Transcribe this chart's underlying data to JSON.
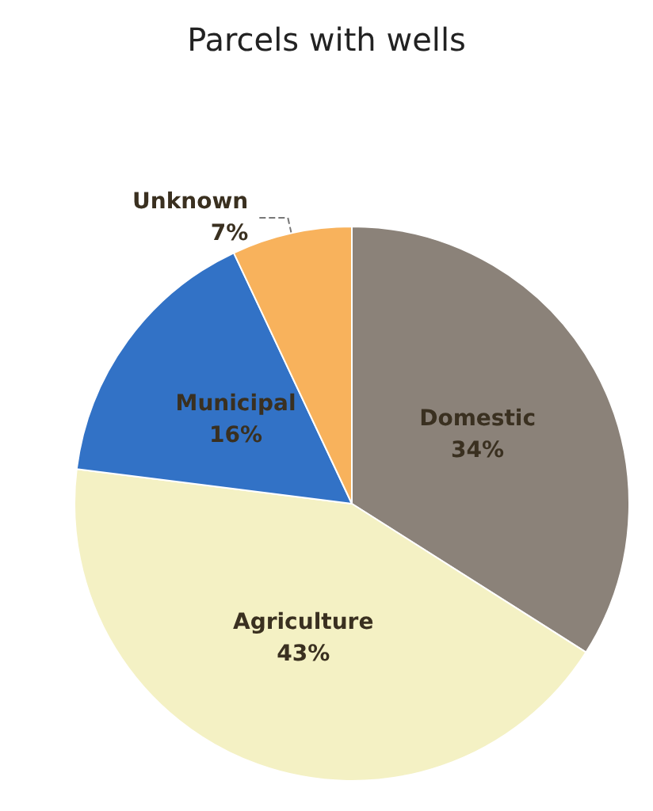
{
  "chart_data": {
    "type": "pie",
    "title": "Parcels with wells",
    "categories": [
      "Domestic",
      "Agriculture",
      "Municipal",
      "Unknown"
    ],
    "values": [
      34,
      43,
      16,
      7
    ],
    "colors": [
      "#8b8279",
      "#f4f1c4",
      "#3272c6",
      "#f8b25c"
    ],
    "value_labels": [
      "34%",
      "43%",
      "16%",
      "7%"
    ]
  }
}
